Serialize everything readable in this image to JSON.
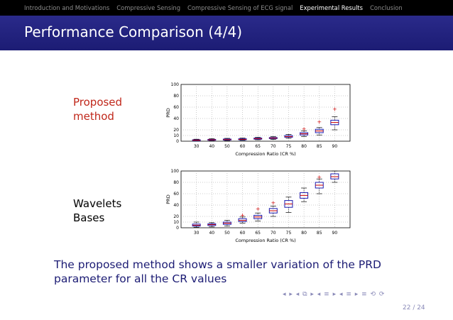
{
  "nav": {
    "items": [
      "Introduction and Motivations",
      "Compressive Sensing",
      "Compressive Sensing of ECG signal",
      "Experimental Results",
      "Conclusion"
    ],
    "active_index": 3
  },
  "slide": {
    "title": "Performance Comparison (4/4)",
    "label_proposed_line1": "Proposed",
    "label_proposed_line2": "method",
    "label_wavelets_line1": "Wavelets",
    "label_wavelets_line2": "Bases",
    "summary_line1": "The proposed method shows a smaller variation of the PRD",
    "summary_line2": "parameter for all the CR values",
    "page": "22 / 24",
    "nav_symbols": "◂ ▸ ◂ ⧉ ▸ ◂ ≡ ▸ ◂ ≡ ▸ ≡ ⟲ ⟳"
  },
  "colors": {
    "nav_bg": "#000000",
    "nav_text": "#8c8c8c",
    "nav_active": "#ffffff",
    "title_bg": "#1c1c74",
    "proposed_label": "#c0271a",
    "summary_text": "#1c1c74",
    "box": "#1a1ab0",
    "median": "#cc0000",
    "outlier": "#cc0000"
  },
  "chart_data": [
    {
      "type": "box",
      "xlabel": "Compression Ratio (CR %)",
      "ylabel": "PRD",
      "categories": [
        "30",
        "40",
        "50",
        "60",
        "65",
        "70",
        "75",
        "80",
        "85",
        "90"
      ],
      "ylim": [
        0,
        100
      ],
      "yticks": [
        0,
        10,
        20,
        40,
        60,
        80,
        100
      ],
      "grid": true,
      "boxes": [
        {
          "min": 0.5,
          "q1": 1.2,
          "median": 1.8,
          "q3": 2.5,
          "max": 3.5,
          "outliers": []
        },
        {
          "min": 1,
          "q1": 1.8,
          "median": 2.5,
          "q3": 3.2,
          "max": 4.5,
          "outliers": []
        },
        {
          "min": 1,
          "q1": 2,
          "median": 2.8,
          "q3": 3.8,
          "max": 5,
          "outliers": []
        },
        {
          "min": 1.5,
          "q1": 2.5,
          "median": 3.2,
          "q3": 4.2,
          "max": 5.5,
          "outliers": []
        },
        {
          "min": 2.5,
          "q1": 3.5,
          "median": 4.5,
          "q3": 5.5,
          "max": 7,
          "outliers": []
        },
        {
          "min": 3,
          "q1": 4.5,
          "median": 5.5,
          "q3": 6.5,
          "max": 8,
          "outliers": []
        },
        {
          "min": 5,
          "q1": 7,
          "median": 8,
          "q3": 10,
          "max": 12,
          "outliers": []
        },
        {
          "min": 8,
          "q1": 11,
          "median": 13,
          "q3": 15,
          "max": 18,
          "outliers": [
            21
          ]
        },
        {
          "min": 11,
          "q1": 15,
          "median": 18,
          "q3": 21,
          "max": 24,
          "outliers": [
            34
          ]
        },
        {
          "min": 20,
          "q1": 29,
          "median": 33,
          "q3": 37,
          "max": 43,
          "outliers": [
            56
          ]
        }
      ]
    },
    {
      "type": "box",
      "xlabel": "Compression Ratio (CR %)",
      "ylabel": "PRD",
      "categories": [
        "30",
        "40",
        "50",
        "60",
        "65",
        "70",
        "75",
        "80",
        "85",
        "90"
      ],
      "ylim": [
        0,
        100
      ],
      "yticks": [
        0,
        10,
        20,
        40,
        60,
        80,
        100
      ],
      "grid": true,
      "boxes": [
        {
          "min": 1,
          "q1": 3,
          "median": 4.5,
          "q3": 6.5,
          "max": 10,
          "outliers": []
        },
        {
          "min": 1.5,
          "q1": 4,
          "median": 5.5,
          "q3": 7,
          "max": 9,
          "outliers": []
        },
        {
          "min": 3,
          "q1": 6,
          "median": 8,
          "q3": 10,
          "max": 13,
          "outliers": []
        },
        {
          "min": 8,
          "q1": 11,
          "median": 13,
          "q3": 16,
          "max": 19,
          "outliers": [
            22
          ]
        },
        {
          "min": 12,
          "q1": 16,
          "median": 19,
          "q3": 22,
          "max": 26,
          "outliers": [
            33
          ]
        },
        {
          "min": 20,
          "q1": 26,
          "median": 30,
          "q3": 34,
          "max": 38,
          "outliers": [
            44
          ]
        },
        {
          "min": 27,
          "q1": 36,
          "median": 42,
          "q3": 48,
          "max": 54,
          "outliers": []
        },
        {
          "min": 46,
          "q1": 52,
          "median": 57,
          "q3": 62,
          "max": 70,
          "outliers": []
        },
        {
          "min": 60,
          "q1": 70,
          "median": 75,
          "q3": 80,
          "max": 86,
          "outliers": [
            89
          ]
        },
        {
          "min": 80,
          "q1": 86,
          "median": 90,
          "q3": 95,
          "max": 100,
          "outliers": []
        }
      ]
    }
  ]
}
